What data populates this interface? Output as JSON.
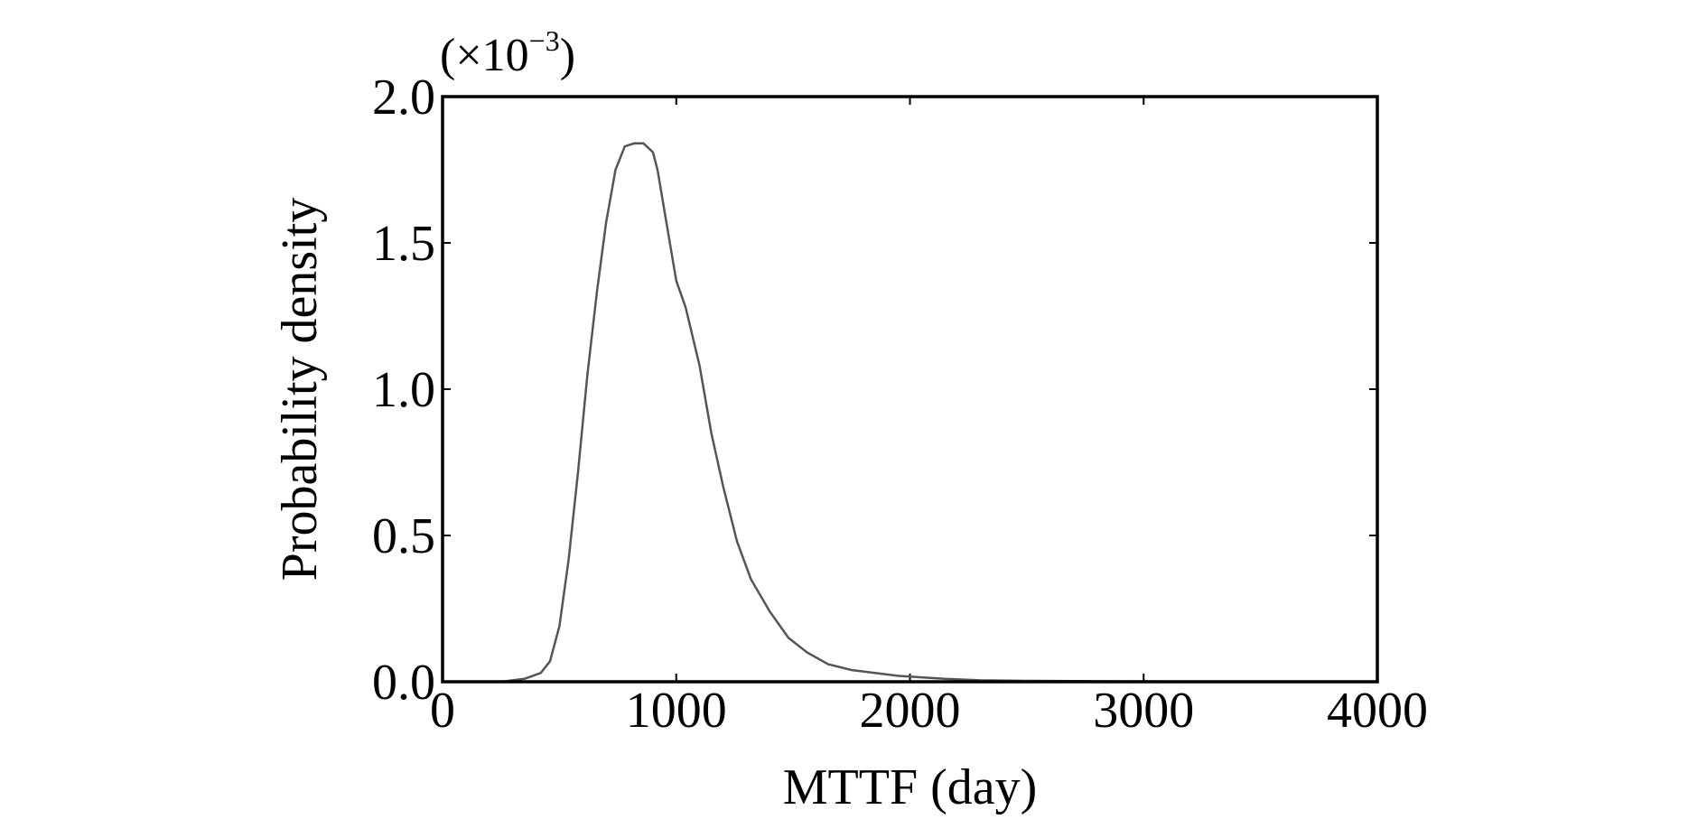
{
  "chart_data": {
    "type": "line",
    "title": "",
    "xlabel": "MTTF (day)",
    "ylabel": "Probability density",
    "y_scale_note": {
      "prefix": "(×10",
      "exponent": "−3",
      "suffix": ")"
    },
    "xlim": [
      0,
      4000
    ],
    "ylim": [
      0,
      2.0
    ],
    "xticks": [
      0,
      1000,
      2000,
      3000,
      4000
    ],
    "xtick_labels": [
      "0",
      "1000",
      "2000",
      "3000",
      "4000"
    ],
    "yticks": [
      0.0,
      0.5,
      1.0,
      1.5,
      2.0
    ],
    "ytick_labels": [
      "0.0",
      "0.5",
      "1.0",
      "1.5",
      "2.0"
    ],
    "grid": false,
    "line_color": "#555555",
    "series": [
      {
        "x": [
          250,
          350,
          420,
          460,
          500,
          540,
          580,
          620,
          660,
          700,
          740,
          780,
          820,
          860,
          900,
          920,
          960,
          1000,
          1040,
          1100,
          1150,
          1200,
          1260,
          1320,
          1400,
          1480,
          1560,
          1650,
          1750,
          1850,
          1950,
          2050,
          2150,
          2300,
          2500,
          2800,
          3100,
          3400,
          3600
        ],
        "y": [
          0.0,
          0.01,
          0.03,
          0.07,
          0.19,
          0.42,
          0.72,
          1.05,
          1.33,
          1.57,
          1.75,
          1.83,
          1.84,
          1.84,
          1.81,
          1.75,
          1.56,
          1.37,
          1.28,
          1.08,
          0.85,
          0.67,
          0.48,
          0.35,
          0.24,
          0.15,
          0.1,
          0.06,
          0.04,
          0.03,
          0.02,
          0.015,
          0.01,
          0.005,
          0.003,
          0.002,
          0.001,
          0.001,
          0.0
        ]
      }
    ]
  }
}
